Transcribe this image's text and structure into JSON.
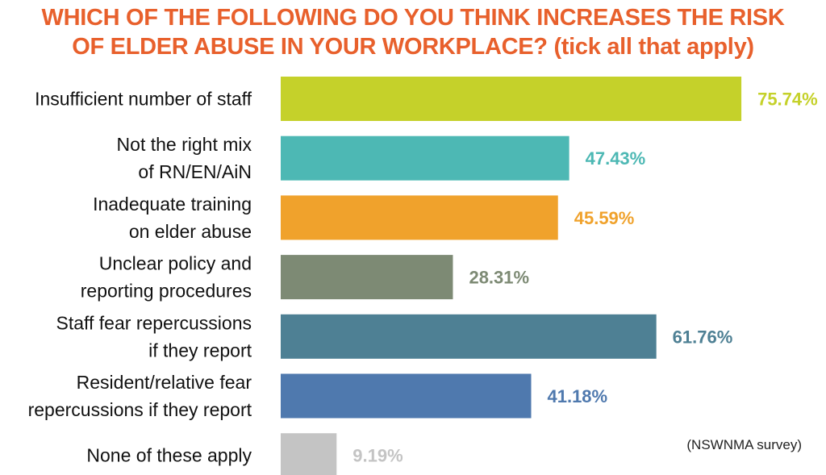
{
  "chart_data": {
    "type": "bar",
    "orientation": "horizontal",
    "title_lines": [
      "WHICH OF THE FOLLOWING DO YOU THINK INCREASES THE RISK",
      "OF ELDER ABUSE IN YOUR WORKPLACE? (tick all that apply)"
    ],
    "categories": [
      [
        "Insufficient number of staff"
      ],
      [
        "Not the right mix",
        "of RN/EN/AiN"
      ],
      [
        "Inadequate training",
        "on elder abuse"
      ],
      [
        "Unclear policy and",
        "reporting procedures"
      ],
      [
        "Staff fear repercussions",
        "if they report"
      ],
      [
        "Resident/relative fear",
        "repercussions if they report"
      ],
      [
        "None of these apply"
      ]
    ],
    "values": [
      75.74,
      47.43,
      45.59,
      28.31,
      61.76,
      41.18,
      9.19
    ],
    "value_labels": [
      "75.74%",
      "47.43%",
      "45.59%",
      "28.31%",
      "61.76%",
      "41.18%",
      "9.19%"
    ],
    "colors": [
      "#c5d12a",
      "#4db8b4",
      "#f0a22c",
      "#7d8a74",
      "#4e8094",
      "#4f79ae",
      "#c4c4c4"
    ],
    "xlim": [
      0,
      100
    ],
    "grid": false,
    "legend": "none"
  },
  "source_note": "(NSWNMA survey)"
}
